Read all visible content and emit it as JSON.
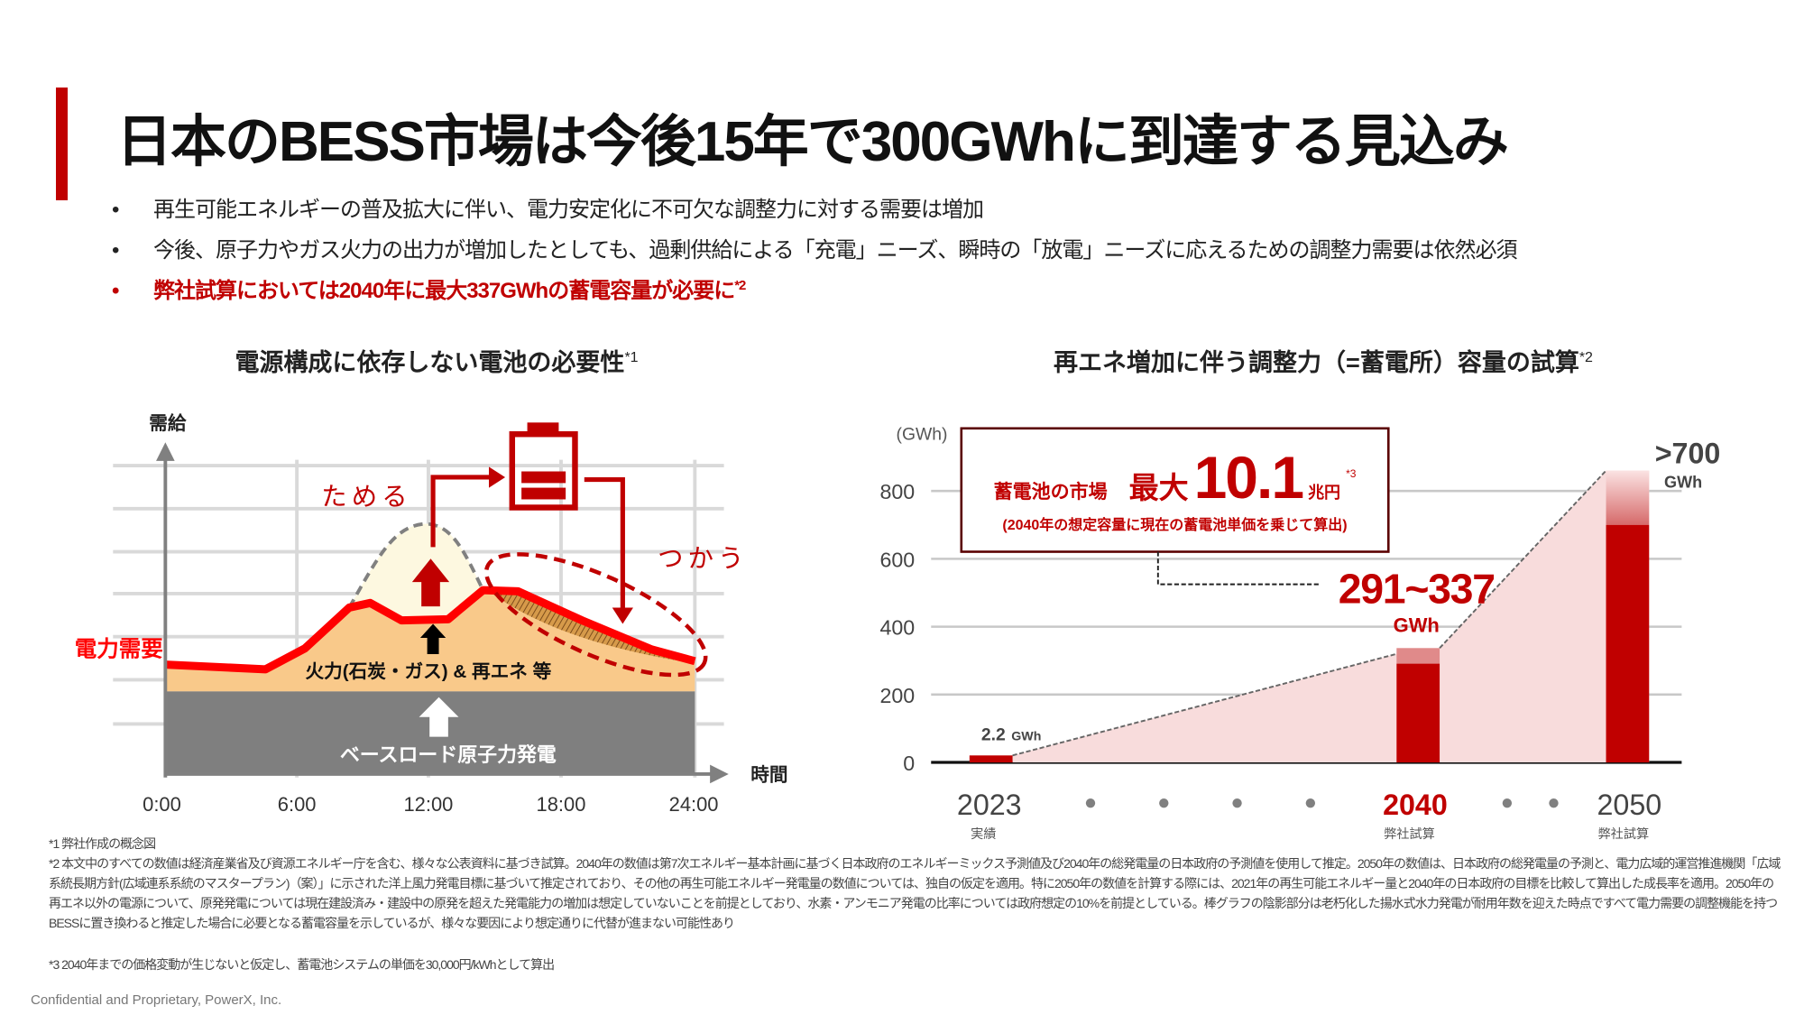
{
  "slide": {
    "title": "日本のBESS市場は今後15年で300GWhに到達する見込み",
    "bullets": [
      {
        "text": "再生可能エネルギーの普及拡大に伴い、電力安定化に不可欠な調整力に対する需要は増加",
        "sup": ""
      },
      {
        "text": "今後、原子力やガス火力の出力が増加したとしても、過剰供給による「充電」ニーズ、瞬時の「放電」ニーズに応えるための調整力需要は依然必須",
        "sup": ""
      },
      {
        "text": "弊社試算においては2040年に最大337GWhの蓄電容量が必要に",
        "sup": "*2"
      }
    ],
    "bullet_symbol": "•",
    "accent_color": "#c00000"
  },
  "left_panel": {
    "title": "電源構成に依存しない電池の必要性",
    "title_sup": "*1",
    "y_axis_label": "需給",
    "x_axis_label": "時間",
    "x_ticks": [
      "0:00",
      "6:00",
      "12:00",
      "18:00",
      "24:00"
    ],
    "demand_label": "電力需要",
    "store_label": "ためる",
    "use_label": "つかう",
    "thermal_label": "火力(石炭・ガス) & 再エネ 等",
    "baseload_label": "ベースロード原子力発電",
    "icons": [
      "battery-icon",
      "arrow-up-icon"
    ]
  },
  "right_panel": {
    "title": "再エネ増加に伴う調整力（=蓄電所）容量の試算",
    "title_sup": "*2",
    "callout": {
      "market_label": "蓄電池の市場",
      "max_label": "最大",
      "value": "10.1",
      "unit": "兆円",
      "sup": "*3",
      "note": "(2040年の想定容量に現在の蓄電池単価を乗じて算出)"
    }
  },
  "chart_data": {
    "type": "bar",
    "ylabel": "(GWh)",
    "ylim": [
      0,
      900
    ],
    "yticks": [
      0,
      200,
      400,
      600,
      800
    ],
    "grid": true,
    "categories": [
      "2023",
      "2040",
      "2050"
    ],
    "category_sublabels": [
      "実績",
      "弊社試算",
      "弊社試算"
    ],
    "series": [
      {
        "values": [
          2.2,
          291,
          700
        ]
      },
      {
        "values": [
          2.2,
          337,
          860
        ]
      }
    ],
    "data_labels": [
      {
        "value": "2.2",
        "unit": "GWh"
      },
      {
        "value": "291~337",
        "unit": "GWh"
      },
      {
        "value": ">700",
        "unit": "GWh"
      }
    ],
    "highlight_category": "2040",
    "colors": {
      "bar": "#c00000",
      "range": "#e08a8a",
      "area": "#f8dcdc",
      "highlight_text": "#c00000"
    }
  },
  "footnotes": [
    "*1 弊社作成の概念図",
    "*2 本文中のすべての数値は経済産業省及び資源エネルギー庁を含む、様々な公表資料に基づき試算。2040年の数値は第7次エネルギー基本計画に基づく日本政府のエネルギーミックス予測値及び2040年の総発電量の日本政府の予測値を使用して推定。2050年の数値は、日本政府の総発電量の予測と、電力広域的運営推進機関「広域系統長期",
    "方針(広域連系系統のマスタープラン)（案）」に示された洋上風力発電目標に基づいて推定されており、その他の再生可能エネルギー発電量の数値については、独自の仮定を適用。特に2050年の数値を計算する際には、2021年の再生可能エネルギー量と2040年の日本政府の目標を比較して算出した成長率を適用。2050年の再エネ以外の電源",
    "について、原発発電については現在建設済み・建設中の原発を超えた発電能力の増加は想定していないことを前提としており、水素・アンモニア発電の比率については政府想定の10%を前提としている。棒グラフの陰影部分は老朽化した揚水式水力発電が耐用年数を迎えた時点ですべて電力需要の調整機能を持つBESSに置き換わると推定した場",
    "合に必要となる蓄電容量を示しているが、様々な要因により想定通りに代替が進まない可能性あり",
    "*3 2040年までの価格変動が生じないと仮定し、蓄電池システムの単価を30,000円/kWhとして算出"
  ],
  "copyright": "Confidential and Proprietary, PowerX, Inc."
}
